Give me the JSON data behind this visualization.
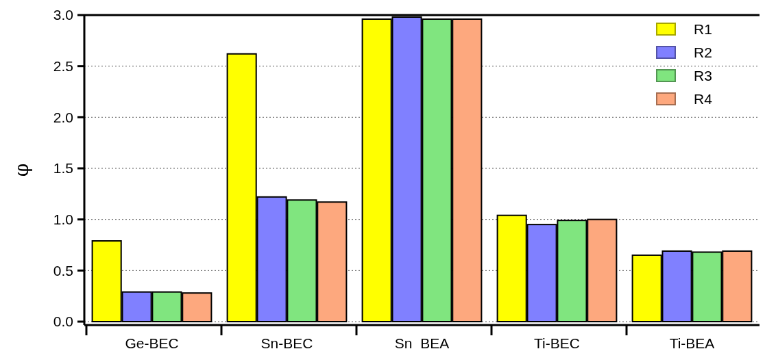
{
  "chart_data": {
    "type": "bar",
    "ylabel": "φ",
    "categories": [
      "Ge-BEC",
      "Sn-BEC",
      "Sn  BEA",
      "Ti-BEC",
      "Ti-BEA"
    ],
    "series": [
      {
        "name": "R1",
        "color": "#ffff00",
        "values": [
          0.79,
          2.62,
          2.96,
          1.04,
          0.65
        ]
      },
      {
        "name": "R2",
        "color": "#8080ff",
        "values": [
          0.29,
          1.22,
          2.98,
          0.95,
          0.69
        ]
      },
      {
        "name": "R3",
        "color": "#80e57f",
        "values": [
          0.29,
          1.19,
          2.96,
          0.99,
          0.68
        ]
      },
      {
        "name": "R4",
        "color": "#fda87e",
        "values": [
          0.28,
          1.17,
          2.96,
          1.0,
          0.69
        ]
      }
    ],
    "ylim": [
      0,
      3
    ],
    "yticks": [
      {
        "value": 0,
        "label": "0.0"
      },
      {
        "value": 0.5,
        "label": "0.5"
      },
      {
        "value": 1,
        "label": "1.0"
      },
      {
        "value": 1.5,
        "label": "1.5"
      },
      {
        "value": 2,
        "label": "2.0"
      },
      {
        "value": 2.5,
        "label": "2.5"
      },
      {
        "value": 3,
        "label": "3.0"
      }
    ],
    "grid": "y",
    "legend": "top right"
  }
}
